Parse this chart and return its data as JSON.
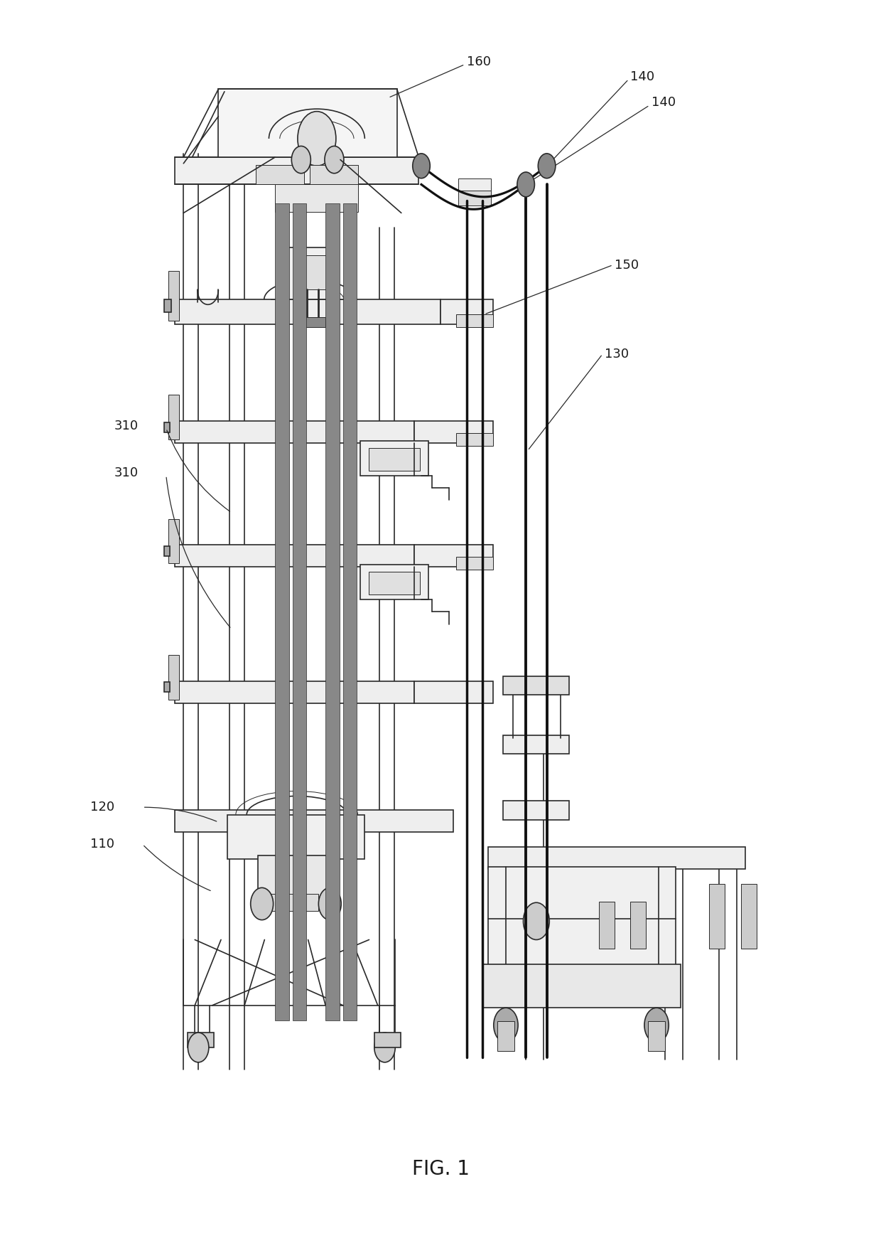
{
  "title": "FIG. 1",
  "background_color": "#ffffff",
  "line_color": "#2a2a2a",
  "label_color": "#1a1a1a",
  "fig_width": 12.4,
  "fig_height": 17.55,
  "fig_label": [
    0.5,
    0.06
  ]
}
